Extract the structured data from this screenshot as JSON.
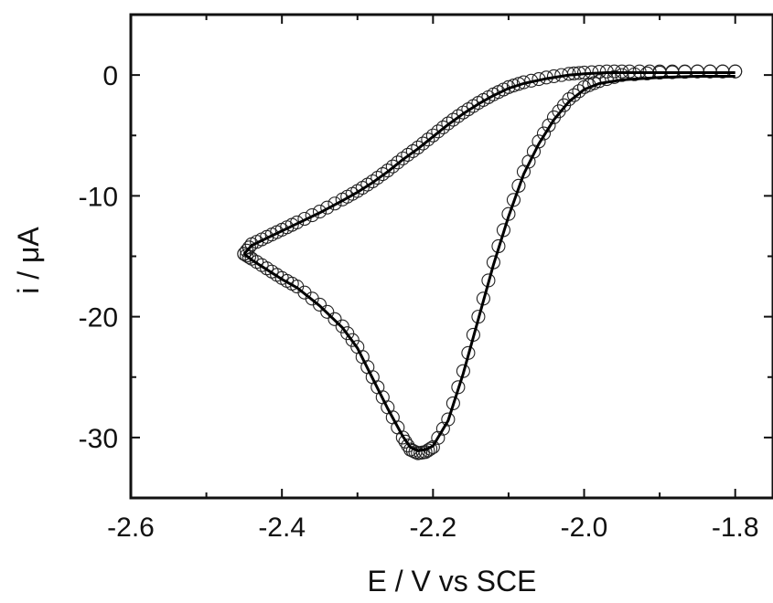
{
  "chart_data": {
    "type": "line",
    "xlabel": "E / V vs SCE",
    "ylabel": "i / μA",
    "xlim": [
      -2.6,
      -1.75
    ],
    "ylim": [
      -35,
      5
    ],
    "xticks": [
      "-2.6",
      "-2.4",
      "-2.2",
      "-2.0",
      "-1.8"
    ],
    "yticks": [
      "0",
      "-10",
      "-20",
      "-30"
    ],
    "grid": false,
    "series": [
      {
        "style": "open-circles",
        "segment": "forward scan (cathodic)",
        "x": [
          -1.8,
          -1.85,
          -1.9,
          -1.95,
          -1.98,
          -2.0,
          -2.02,
          -2.04,
          -2.06,
          -2.08,
          -2.1,
          -2.12,
          -2.14,
          -2.16,
          -2.18,
          -2.2,
          -2.21,
          -2.22,
          -2.23,
          -2.24,
          -2.26,
          -2.28,
          -2.3,
          -2.32,
          -2.35,
          -2.38,
          -2.4,
          -2.42,
          -2.44,
          -2.45
        ],
        "y": [
          0.3,
          0.3,
          0.2,
          0.0,
          -0.5,
          -1.0,
          -2.0,
          -3.5,
          -5.5,
          -8.0,
          -11.5,
          -15.5,
          -20.0,
          -24.5,
          -28.5,
          -30.8,
          -31.2,
          -31.3,
          -31.0,
          -30.0,
          -27.5,
          -25.0,
          -22.5,
          -20.8,
          -19.0,
          -17.5,
          -16.8,
          -16.0,
          -15.2,
          -14.8
        ]
      },
      {
        "style": "open-circles",
        "segment": "reverse scan (anodic)",
        "x": [
          -2.45,
          -2.44,
          -2.42,
          -2.4,
          -2.38,
          -2.35,
          -2.32,
          -2.3,
          -2.28,
          -2.26,
          -2.24,
          -2.22,
          -2.2,
          -2.18,
          -2.16,
          -2.14,
          -2.12,
          -2.1,
          -2.08,
          -2.05,
          -2.02,
          -2.0,
          -1.97,
          -1.94,
          -1.9,
          -1.85,
          -1.8
        ],
        "y": [
          -14.8,
          -14.0,
          -13.4,
          -12.8,
          -12.2,
          -11.3,
          -10.3,
          -9.6,
          -8.8,
          -7.9,
          -6.9,
          -6.0,
          -5.0,
          -4.0,
          -3.1,
          -2.3,
          -1.6,
          -1.0,
          -0.6,
          -0.2,
          0.1,
          0.2,
          0.3,
          0.3,
          0.3,
          0.3,
          0.3
        ]
      },
      {
        "style": "solid-line",
        "segment": "simulated forward scan",
        "x": [
          -1.8,
          -1.85,
          -1.9,
          -1.95,
          -1.98,
          -2.0,
          -2.02,
          -2.04,
          -2.06,
          -2.08,
          -2.1,
          -2.12,
          -2.14,
          -2.16,
          -2.18,
          -2.2,
          -2.21,
          -2.22,
          -2.23,
          -2.24,
          -2.26,
          -2.28,
          -2.3,
          -2.32,
          -2.35,
          -2.38,
          -2.4,
          -2.42,
          -2.44,
          -2.45
        ],
        "y": [
          -0.1,
          -0.1,
          -0.2,
          -0.4,
          -0.7,
          -1.2,
          -2.2,
          -3.7,
          -5.7,
          -8.2,
          -11.7,
          -15.7,
          -20.2,
          -24.7,
          -28.6,
          -30.7,
          -31.0,
          -31.1,
          -30.8,
          -29.9,
          -27.6,
          -25.1,
          -22.6,
          -20.9,
          -19.1,
          -17.6,
          -16.9,
          -16.1,
          -15.3,
          -14.8
        ]
      },
      {
        "style": "solid-line",
        "segment": "simulated reverse scan",
        "x": [
          -2.45,
          -2.44,
          -2.42,
          -2.4,
          -2.38,
          -2.35,
          -2.32,
          -2.3,
          -2.28,
          -2.26,
          -2.24,
          -2.22,
          -2.2,
          -2.18,
          -2.16,
          -2.14,
          -2.12,
          -2.1,
          -2.08,
          -2.05,
          -2.02,
          -2.0,
          -1.97,
          -1.94,
          -1.9,
          -1.85,
          -1.8
        ],
        "y": [
          -14.8,
          -14.1,
          -13.5,
          -12.9,
          -12.3,
          -11.4,
          -10.4,
          -9.7,
          -8.9,
          -8.0,
          -7.0,
          -6.1,
          -5.1,
          -4.1,
          -3.2,
          -2.4,
          -1.7,
          -1.1,
          -0.7,
          -0.3,
          0.0,
          0.1,
          0.2,
          0.2,
          0.2,
          0.2,
          0.2
        ]
      }
    ]
  }
}
